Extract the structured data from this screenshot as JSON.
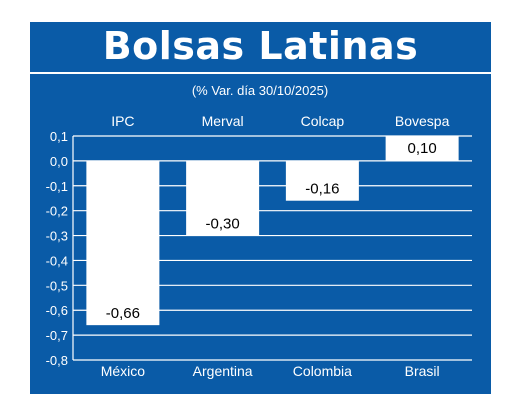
{
  "title": "Bolsas Latinas",
  "chart_data": {
    "type": "bar",
    "subtitle": "(% Var. día 30/10/2025)",
    "categories": [
      "México",
      "Argentina",
      "Colombia",
      "Brasil"
    ],
    "index_names": [
      "IPC",
      "Merval",
      "Colcap",
      "Bovespa"
    ],
    "values": [
      -0.66,
      -0.3,
      -0.16,
      0.1
    ],
    "value_labels": [
      "-0,66",
      "-0,30",
      "-0,16",
      "0,10"
    ],
    "ylim": [
      -0.8,
      0.1
    ],
    "yticks": [
      0.1,
      0.0,
      -0.1,
      -0.2,
      -0.3,
      -0.4,
      -0.5,
      -0.6,
      -0.7,
      -0.8
    ],
    "ytick_labels": [
      "0,1",
      "0,0",
      "-0,1",
      "-0,2",
      "-0,3",
      "-0,4",
      "-0,5",
      "-0,6",
      "-0,7",
      "-0,8"
    ],
    "grid": true,
    "colors": {
      "background": "#0a5ba7",
      "bar": "#ffffff",
      "text": "#ffffff",
      "label": "#000000"
    }
  }
}
